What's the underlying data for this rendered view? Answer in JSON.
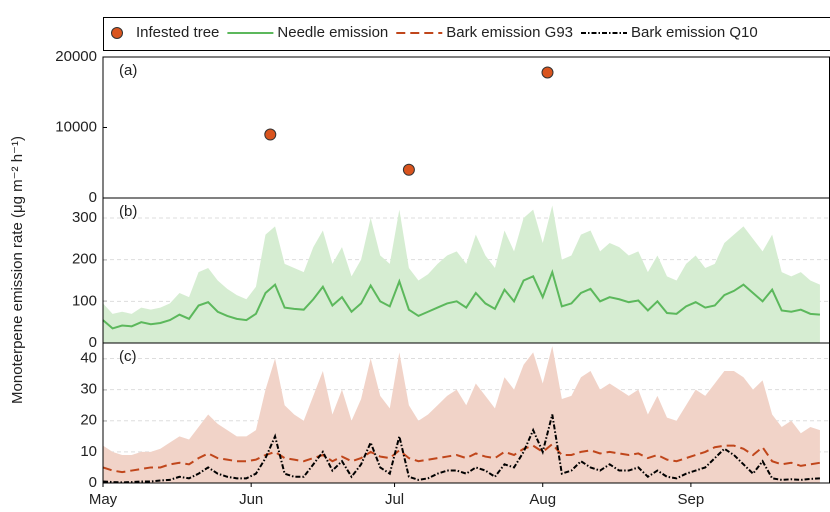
{
  "y_label": "Monoterpene emission rate (μg m⁻² h⁻¹)",
  "chart_data": [
    {
      "type": "scatter",
      "label": "(a)",
      "xlim": [
        0,
        152
      ],
      "ylim": [
        0,
        20000
      ],
      "yticks": [
        0,
        10000,
        20000
      ],
      "grid": false,
      "series": [
        {
          "name": "Infested tree",
          "color": "#d9541e",
          "x": [
            35,
            64,
            93
          ],
          "values": [
            9000,
            4000,
            17800
          ]
        }
      ]
    },
    {
      "type": "line",
      "label": "(b)",
      "xlim": [
        0,
        152
      ],
      "ylim": [
        0,
        348
      ],
      "yticks": [
        0,
        100,
        200,
        300
      ],
      "grid": true,
      "x": [
        0,
        2,
        4,
        6,
        8,
        10,
        12,
        14,
        16,
        18,
        20,
        22,
        24,
        26,
        28,
        30,
        32,
        34,
        36,
        38,
        40,
        42,
        44,
        46,
        48,
        50,
        52,
        54,
        56,
        58,
        60,
        62,
        64,
        66,
        68,
        70,
        72,
        74,
        76,
        78,
        80,
        82,
        84,
        86,
        88,
        90,
        92,
        94,
        96,
        98,
        100,
        102,
        104,
        106,
        108,
        110,
        112,
        114,
        116,
        118,
        120,
        122,
        124,
        126,
        128,
        130,
        132,
        134,
        136,
        138,
        140,
        142,
        144,
        146,
        148,
        150
      ],
      "series": [
        {
          "name": "Needle emission",
          "color": "#5cb85c",
          "dash": "solid",
          "range_color": "#d6edd2",
          "values": [
            55,
            35,
            42,
            40,
            50,
            45,
            48,
            55,
            68,
            58,
            90,
            98,
            75,
            65,
            58,
            55,
            70,
            120,
            140,
            85,
            82,
            80,
            105,
            135,
            90,
            110,
            75,
            95,
            138,
            100,
            88,
            148,
            80,
            65,
            75,
            85,
            95,
            100,
            85,
            120,
            95,
            82,
            128,
            100,
            150,
            160,
            110,
            170,
            88,
            95,
            120,
            130,
            100,
            110,
            105,
            98,
            102,
            78,
            100,
            72,
            70,
            88,
            98,
            85,
            90,
            115,
            125,
            140,
            120,
            100,
            128,
            78,
            75,
            80,
            70,
            68
          ],
          "range_upper": [
            95,
            70,
            75,
            70,
            85,
            80,
            85,
            95,
            120,
            110,
            170,
            180,
            150,
            130,
            115,
            105,
            135,
            260,
            280,
            190,
            180,
            170,
            230,
            270,
            190,
            230,
            160,
            200,
            300,
            210,
            190,
            320,
            180,
            150,
            165,
            190,
            210,
            220,
            190,
            260,
            210,
            180,
            270,
            220,
            300,
            320,
            240,
            330,
            200,
            210,
            260,
            270,
            220,
            240,
            230,
            210,
            220,
            170,
            210,
            160,
            150,
            190,
            210,
            180,
            190,
            240,
            260,
            280,
            250,
            220,
            260,
            170,
            160,
            170,
            150,
            140
          ]
        }
      ]
    },
    {
      "type": "line",
      "label": "(c)",
      "xlim": [
        0,
        152
      ],
      "ylim": [
        0,
        45
      ],
      "yticks": [
        0,
        10,
        20,
        30,
        40
      ],
      "grid": true,
      "xticks": [
        {
          "value": 0,
          "label": "May"
        },
        {
          "value": 31,
          "label": "Jun"
        },
        {
          "value": 61,
          "label": "Jul"
        },
        {
          "value": 92,
          "label": "Aug"
        },
        {
          "value": 123,
          "label": "Sep"
        }
      ],
      "x": [
        0,
        2,
        4,
        6,
        8,
        10,
        12,
        14,
        16,
        18,
        20,
        22,
        24,
        26,
        28,
        30,
        32,
        34,
        36,
        38,
        40,
        42,
        44,
        46,
        48,
        50,
        52,
        54,
        56,
        58,
        60,
        62,
        64,
        66,
        68,
        70,
        72,
        74,
        76,
        78,
        80,
        82,
        84,
        86,
        88,
        90,
        92,
        94,
        96,
        98,
        100,
        102,
        104,
        106,
        108,
        110,
        112,
        114,
        116,
        118,
        120,
        122,
        124,
        126,
        128,
        130,
        132,
        134,
        136,
        138,
        140,
        142,
        144,
        146,
        148,
        150
      ],
      "series": [
        {
          "name": "Bark emission G93",
          "color": "#c0461b",
          "dash": "dashed",
          "range_color": "#f1d3c8",
          "values": [
            5,
            4,
            3.5,
            4,
            4.5,
            5,
            5,
            6,
            6.5,
            6,
            8,
            9.5,
            8,
            7.5,
            7,
            7,
            7.5,
            9,
            10,
            8,
            7.5,
            7,
            8,
            9,
            7,
            8.5,
            7,
            8,
            10,
            8.5,
            8,
            10.5,
            8,
            7,
            7.5,
            8,
            8.5,
            9,
            8,
            9.5,
            8.5,
            8,
            10,
            9,
            11,
            12,
            10,
            12.5,
            9,
            9,
            10,
            10.5,
            9.5,
            10,
            9.5,
            9,
            9.5,
            8,
            9,
            7.5,
            7,
            8,
            9,
            10,
            11.5,
            12,
            12,
            11,
            9,
            11.5,
            7,
            6,
            6.5,
            5.5,
            6,
            6.5
          ],
          "range_upper": [
            12,
            10,
            9,
            9,
            10,
            10,
            11,
            13,
            15,
            14,
            18,
            22,
            19,
            17,
            15,
            15,
            17,
            30,
            40,
            25,
            22,
            20,
            28,
            36,
            22,
            30,
            20,
            27,
            40,
            28,
            24,
            42,
            25,
            20,
            22,
            25,
            28,
            30,
            25,
            32,
            28,
            24,
            34,
            30,
            38,
            42,
            32,
            44,
            27,
            28,
            34,
            36,
            30,
            32,
            30,
            28,
            30,
            22,
            28,
            21,
            20,
            25,
            30,
            28,
            32,
            36,
            36,
            34,
            30,
            33,
            22,
            18,
            20,
            16,
            18,
            17
          ]
        },
        {
          "name": "Bark emission Q10",
          "color": "#000000",
          "dash": "dashdot",
          "values": [
            0.5,
            0.3,
            0.2,
            0.3,
            0.5,
            0.5,
            0.8,
            1,
            2,
            1.5,
            3,
            5,
            3,
            2,
            1.5,
            1.5,
            3,
            8,
            15,
            3,
            2,
            2,
            6,
            10,
            4,
            7,
            2,
            6,
            13,
            5,
            3,
            15,
            2,
            1,
            1.5,
            3,
            4,
            4,
            3,
            5,
            4,
            2,
            6,
            5,
            10,
            17,
            10,
            22,
            3,
            4,
            7,
            5,
            4,
            6,
            4,
            4,
            5,
            2,
            4,
            2,
            1.5,
            3,
            4,
            5,
            8,
            11,
            9,
            6,
            3,
            7,
            1.5,
            1,
            1.2,
            1,
            1.3,
            1.5
          ]
        }
      ]
    }
  ]
}
